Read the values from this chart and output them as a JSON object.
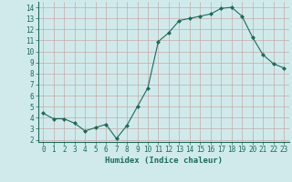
{
  "x": [
    0,
    1,
    2,
    3,
    4,
    5,
    6,
    7,
    8,
    9,
    10,
    11,
    12,
    13,
    14,
    15,
    16,
    17,
    18,
    19,
    20,
    21,
    22,
    23
  ],
  "y": [
    4.4,
    3.9,
    3.9,
    3.5,
    2.8,
    3.1,
    3.4,
    2.1,
    3.3,
    5.0,
    6.7,
    10.9,
    11.7,
    12.8,
    13.0,
    13.2,
    13.4,
    13.9,
    14.0,
    13.2,
    11.3,
    9.7,
    8.9,
    8.5
  ],
  "line_color": "#1a6b5a",
  "marker": "D",
  "marker_size": 2.0,
  "bg_color": "#d0eaeb",
  "grid_color": "#b8d8d8",
  "xlabel": "Humidex (Indice chaleur)",
  "xlim": [
    -0.5,
    23.5
  ],
  "ylim": [
    1.8,
    14.5
  ],
  "yticks": [
    2,
    3,
    4,
    5,
    6,
    7,
    8,
    9,
    10,
    11,
    12,
    13,
    14
  ],
  "xticks": [
    0,
    1,
    2,
    3,
    4,
    5,
    6,
    7,
    8,
    9,
    10,
    11,
    12,
    13,
    14,
    15,
    16,
    17,
    18,
    19,
    20,
    21,
    22,
    23
  ],
  "label_fontsize": 6.5,
  "tick_fontsize": 5.5
}
